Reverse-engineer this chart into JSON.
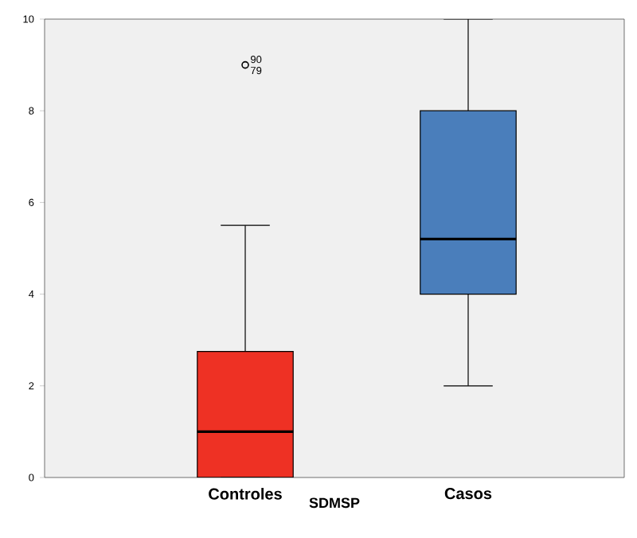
{
  "chart_data": {
    "type": "box",
    "categories": [
      "Controles",
      "Casos"
    ],
    "xlabel": "SDMSP",
    "boxes": [
      {
        "low": 0,
        "q1": 0,
        "median": 1,
        "q3": 2.75,
        "high": 5.5,
        "outliers": [
          9
        ]
      },
      {
        "low": 2,
        "q1": 4,
        "median": 5.2,
        "q3": 8,
        "high": 10
      }
    ],
    "colors": [
      "#ee3124",
      "#4a7ebb"
    ],
    "ylim": [
      0,
      10
    ],
    "yticks": [
      0,
      2,
      4,
      6,
      8,
      10
    ],
    "annotations": [
      "90",
      "79"
    ]
  }
}
